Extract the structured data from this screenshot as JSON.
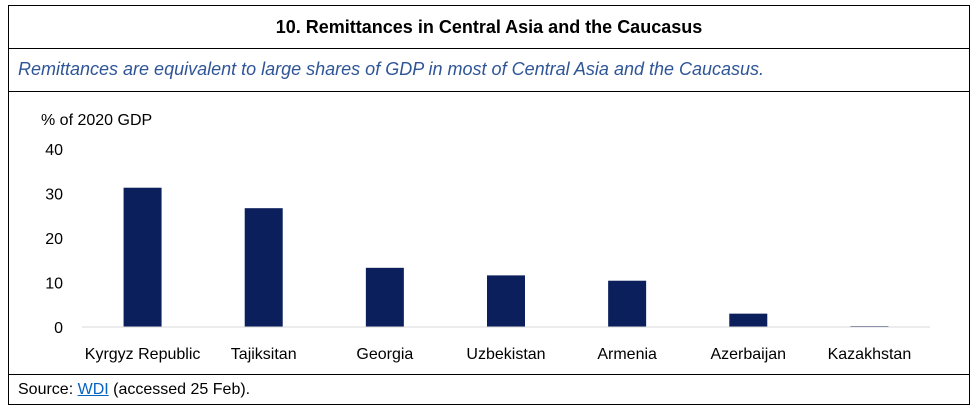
{
  "title": "10. Remittances in Central Asia and the Caucasus",
  "subtitle": "Remittances are equivalent to large shares of GDP in most of Central Asia and the Caucasus.",
  "source": {
    "prefix": "Source:",
    "link_text": "WDI",
    "suffix": "(accessed 25 Feb)."
  },
  "colors": {
    "bar": "#0b1f5c",
    "subtitle": "#2f5597",
    "link": "#0563c1"
  },
  "chart_data": {
    "type": "bar",
    "title": "10. Remittances in Central Asia and the Caucasus",
    "ylabel": "% of 2020 GDP",
    "xlabel": "",
    "ylim": [
      0,
      40
    ],
    "yticks": [
      0,
      10,
      20,
      30,
      40
    ],
    "grid": false,
    "categories": [
      "Kyrgyz Republic",
      "Tajiksitan",
      "Georgia",
      "Uzbekistan",
      "Armenia",
      "Azerbaijan",
      "Kazakhstan"
    ],
    "values": [
      31.3,
      26.7,
      13.3,
      11.6,
      10.4,
      3.0,
      0.2
    ]
  }
}
